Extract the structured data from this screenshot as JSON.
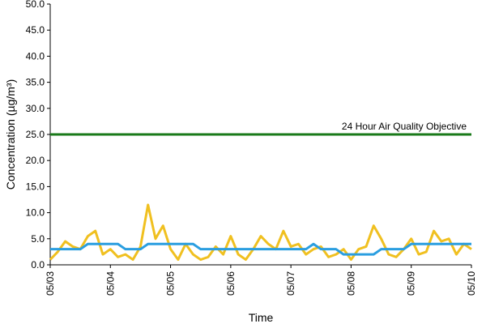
{
  "chart_data": {
    "type": "line",
    "y_label": "Concentration (µg/m³)",
    "x_label": "Time",
    "xlim": [
      0,
      168
    ],
    "xticks": [
      {
        "value": 0,
        "label": "05/03"
      },
      {
        "value": 24,
        "label": "05/04"
      },
      {
        "value": 48,
        "label": "05/05"
      },
      {
        "value": 72,
        "label": "05/06"
      },
      {
        "value": 96,
        "label": "05/07"
      },
      {
        "value": 120,
        "label": "05/08"
      },
      {
        "value": 144,
        "label": "05/09"
      },
      {
        "value": 168,
        "label": "05/10"
      }
    ],
    "ylim": [
      0,
      50
    ],
    "yticks": [
      {
        "value": 0,
        "label": "0.0"
      },
      {
        "value": 5,
        "label": "5.0"
      },
      {
        "value": 10,
        "label": "10.0"
      },
      {
        "value": 15,
        "label": "15.0"
      },
      {
        "value": 20,
        "label": "20.0"
      },
      {
        "value": 25,
        "label": "25.0"
      },
      {
        "value": 30,
        "label": "30.0"
      },
      {
        "value": 35,
        "label": "35.0"
      },
      {
        "value": 40,
        "label": "40.0"
      },
      {
        "value": 45,
        "label": "45.0"
      },
      {
        "value": 50,
        "label": "50.0"
      }
    ],
    "x": [
      0,
      3,
      6,
      9,
      12,
      15,
      18,
      21,
      24,
      27,
      30,
      33,
      36,
      39,
      42,
      45,
      48,
      51,
      54,
      57,
      60,
      63,
      66,
      69,
      72,
      75,
      78,
      81,
      84,
      87,
      90,
      93,
      96,
      99,
      102,
      105,
      108,
      111,
      114,
      117,
      120,
      123,
      126,
      129,
      132,
      135,
      138,
      141,
      144,
      147,
      150,
      153,
      156,
      159,
      162,
      165,
      168
    ],
    "series": [
      {
        "color": "#f0c020",
        "values": [
          1,
          2.5,
          4.5,
          3.5,
          3,
          5.5,
          6.5,
          2,
          3,
          1.5,
          2,
          1,
          3.5,
          11.5,
          5,
          7.5,
          3,
          1,
          4,
          2,
          1,
          1.5,
          3.5,
          2,
          5.5,
          2,
          1,
          3,
          5.5,
          4,
          3,
          6.5,
          3.5,
          4,
          2,
          3,
          3.5,
          1.5,
          2,
          3,
          1,
          3,
          3.5,
          7.5,
          5,
          2,
          1.5,
          3,
          5,
          2,
          2.5,
          6.5,
          4.5,
          5,
          2,
          4,
          3
        ]
      },
      {
        "color": "#2a9ee0",
        "values": [
          3,
          3,
          3,
          3,
          3,
          4,
          4,
          4,
          4,
          4,
          3,
          3,
          3,
          4,
          4,
          4,
          4,
          4,
          4,
          4,
          3,
          3,
          3,
          3,
          3,
          3,
          3,
          3,
          3,
          3,
          3,
          3,
          3,
          3,
          3,
          4,
          3,
          3,
          3,
          2,
          2,
          2,
          2,
          2,
          3,
          3,
          3,
          3,
          4,
          4,
          4,
          4,
          4,
          4,
          4,
          4,
          4
        ]
      }
    ],
    "reference_line": {
      "value": 25,
      "label": "24 Hour Air Quality Objective",
      "color": "#1a7a1a"
    }
  }
}
